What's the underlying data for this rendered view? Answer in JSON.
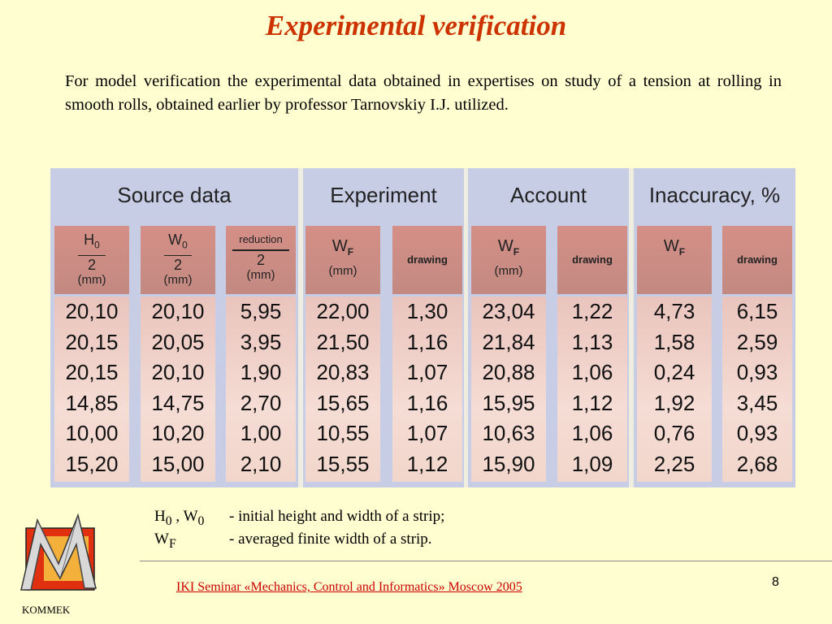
{
  "title": "Experimental verification",
  "intro": "For model verification the experimental data obtained in expertises on study of a tension at rolling in smooth rolls, obtained earlier by professor Tarnovskiy I.J. utilized.",
  "table": {
    "groups": [
      "Source data",
      "Experiment",
      "Account",
      "Inaccuracy, %"
    ],
    "col_headers": {
      "h0_num": "H",
      "h0_sub": "0",
      "w0_num": "W",
      "w0_sub": "0",
      "reduction_num": "reduction",
      "den": "2",
      "unit": "(mm)",
      "wf": "W",
      "wf_sub": "F",
      "drawing": "drawing"
    },
    "columns": [
      [
        "20,10",
        "20,15",
        "20,15",
        "14,85",
        "10,00",
        "15,20"
      ],
      [
        "20,10",
        "20,05",
        "20,10",
        "14,75",
        "10,20",
        "15,00"
      ],
      [
        "5,95",
        "3,95",
        "1,90",
        "2,70",
        "1,00",
        "2,10"
      ],
      [
        "22,00",
        "21,50",
        "20,83",
        "15,65",
        "10,55",
        "15,55"
      ],
      [
        "1,30",
        "1,16",
        "1,07",
        "1,16",
        "1,07",
        "1,12"
      ],
      [
        "23,04",
        "21,84",
        "20,88",
        "15,95",
        "10,63",
        "15,90"
      ],
      [
        "1,22",
        "1,13",
        "1,06",
        "1,12",
        "1,06",
        "1,09"
      ],
      [
        "4,73",
        "1,58",
        "0,24",
        "1,92",
        "0,76",
        "2,25"
      ],
      [
        "6,15",
        "2,59",
        "0,93",
        "3,45",
        "0,93",
        "2,68"
      ]
    ]
  },
  "legend": {
    "row1_sym": "H",
    "row1_sub1": "0",
    "row1_sep": " , W",
    "row1_sub2": "0",
    "row1_desc": "- initial height and width of a strip;",
    "row2_sym": "W",
    "row2_sub": "F",
    "row2_desc": "- averaged finite width of a strip."
  },
  "footer": {
    "link_text": "IKI Seminar «Mechanics, Control and Informatics»     Moscow     2005",
    "page_number": "8",
    "logo_label": "KOMMEK"
  },
  "colors": {
    "background": "#fefed0",
    "title": "#cc3300",
    "group_header_bg": "#c8cde6",
    "column_header_bg": "#d58f86",
    "cell_bg": "#f5dcd4",
    "footer_link": "#cc0000"
  }
}
